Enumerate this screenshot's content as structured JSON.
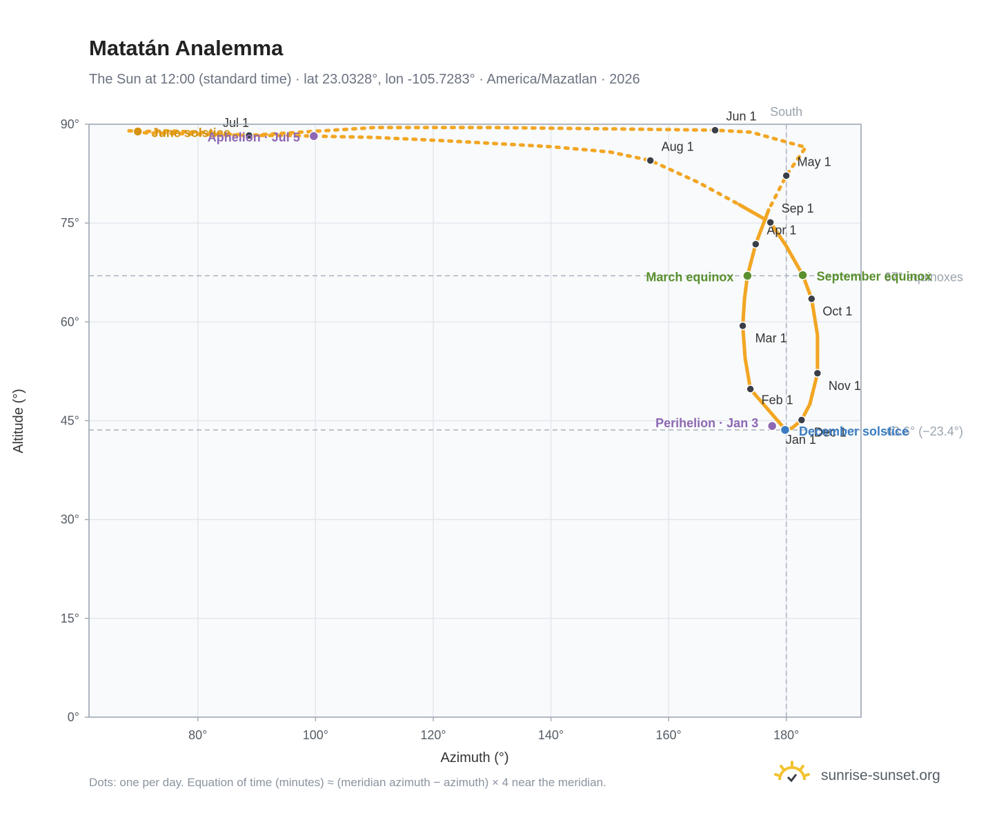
{
  "title": "Matatán Analemma",
  "subtitle": "The Sun at 12:00 (standard time) · lat 23.0328°, lon -105.7283° · America/Mazatlan · 2026",
  "footnote": "Dots: one per day. Equation of time (minutes) ≈ (meridian azimuth − azimuth) × 4 near the meridian.",
  "brand": "sunrise-sunset.org",
  "brand_icon": "sun-logo-icon",
  "colors": {
    "path": "#f2a623",
    "month_dot": "#3a3f47",
    "equinox": "#5a8f2e",
    "june_solstice": "#d4920f",
    "december_solstice": "#3a7cc2",
    "apsis": "#8e67b3",
    "plot_bg": "#f8fafc",
    "grid": "#e3e7ec"
  },
  "chart_data": {
    "type": "scatter",
    "xlabel": "Azimuth (°)",
    "ylabel": "Altitude (°)",
    "xlim": [
      61.5,
      192.7
    ],
    "ylim": [
      0,
      90
    ],
    "x_ticks": [
      80,
      100,
      120,
      140,
      160,
      180
    ],
    "x_tick_labels": [
      "80°",
      "100°",
      "120°",
      "140°",
      "160°",
      "180°"
    ],
    "y_ticks": [
      0,
      15,
      30,
      45,
      60,
      75,
      90
    ],
    "y_tick_labels": [
      "0°",
      "15°",
      "30°",
      "45°",
      "60°",
      "75°",
      "90°"
    ],
    "grid": true,
    "meridian": {
      "x": 180,
      "label": "South"
    },
    "reference_lines": [
      {
        "y": 67.0,
        "label": "67° equinoxes"
      },
      {
        "y": 43.6,
        "label": "43.6° (−23.4°)"
      }
    ],
    "months": [
      {
        "label": "Jan 1",
        "x": 179.9,
        "y": 43.6
      },
      {
        "label": "Feb 1",
        "x": 173.9,
        "y": 49.8
      },
      {
        "label": "Mar 1",
        "x": 172.6,
        "y": 59.4
      },
      {
        "label": "Apr 1",
        "x": 174.8,
        "y": 71.8
      },
      {
        "label": "May 1",
        "x": 180.0,
        "y": 82.2
      },
      {
        "label": "Jun 1",
        "x": 167.9,
        "y": 89.1
      },
      {
        "label": "Jul 1",
        "x": 88.7,
        "y": 88.3
      },
      {
        "label": "Aug 1",
        "x": 156.9,
        "y": 84.5
      },
      {
        "label": "Sep 1",
        "x": 177.3,
        "y": 75.1
      },
      {
        "label": "Oct 1",
        "x": 184.3,
        "y": 63.5
      },
      {
        "label": "Nov 1",
        "x": 185.3,
        "y": 52.2
      },
      {
        "label": "Dec 1",
        "x": 182.6,
        "y": 45.1
      }
    ],
    "events": [
      {
        "label": "March equinox",
        "x": 173.4,
        "y": 67.0,
        "kind": "equinox"
      },
      {
        "label": "September equinox",
        "x": 182.8,
        "y": 67.1,
        "kind": "equinox"
      },
      {
        "label": "June solstice",
        "x": 69.8,
        "y": 88.9,
        "kind": "june_solstice"
      },
      {
        "label": "December solstice",
        "x": 179.8,
        "y": 43.6,
        "kind": "december_solstice"
      },
      {
        "label": "Perihelion · Jan 3",
        "x": 177.6,
        "y": 44.2,
        "kind": "apsis"
      },
      {
        "label": "Aphelion · Jul 5",
        "x": 99.7,
        "y": 88.2,
        "kind": "apsis"
      }
    ],
    "series": [
      {
        "name": "",
        "x": [
          179.9,
          173.9,
          173.0,
          172.6,
          172.9,
          173.4,
          174.8,
          177.0,
          180.0,
          183.3,
          174.0,
          167.9,
          150.0,
          130.0,
          110.0,
          88.7,
          80.0,
          75.0,
          71.0,
          68.3,
          71.0,
          80.0,
          88.0,
          95.0,
          99.7,
          110.0,
          122.0,
          140.0,
          150.0,
          156.9,
          165.0,
          172.0,
          177.3,
          180.0,
          182.8,
          184.3,
          185.3,
          185.3,
          184.0,
          182.6,
          181.0,
          179.9
        ],
        "y": [
          43.6,
          49.8,
          54.5,
          59.4,
          63.5,
          67.0,
          71.8,
          77.0,
          82.2,
          86.5,
          88.8,
          89.1,
          89.3,
          89.5,
          89.5,
          88.3,
          88.8,
          89.0,
          88.9,
          89.0,
          88.7,
          88.5,
          88.3,
          88.3,
          88.2,
          88.0,
          87.5,
          86.6,
          85.8,
          84.5,
          81.2,
          77.8,
          75.1,
          71.5,
          67.1,
          63.5,
          58.0,
          52.2,
          47.5,
          45.1,
          43.9,
          43.6
        ]
      }
    ]
  }
}
